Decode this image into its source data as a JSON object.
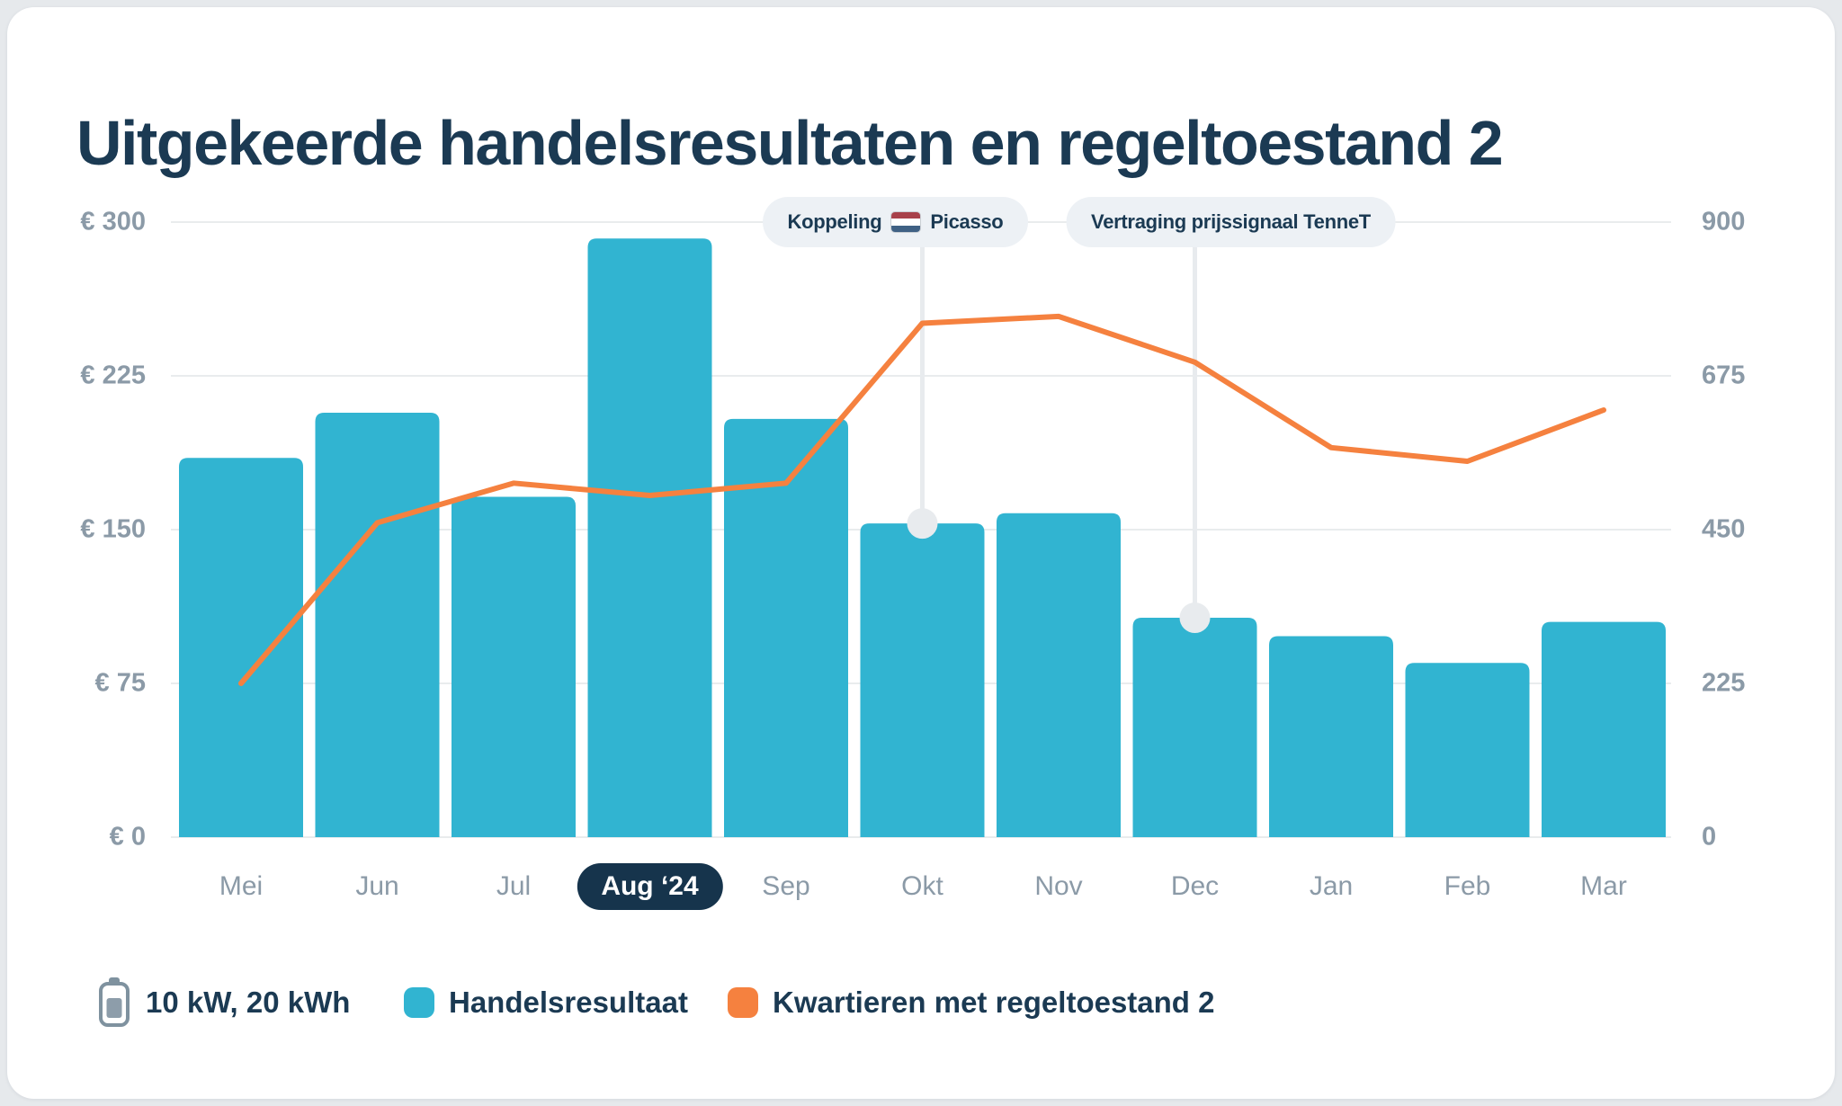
{
  "title": "Uitgekeerde handelsresultaten en regeltoestand 2",
  "annotations": [
    {
      "prefix": "Koppeling",
      "flag": "netherlands-flag",
      "suffix": "Picasso",
      "month": "Okt"
    },
    {
      "text": "Vertraging prijssignaal TenneT",
      "month": "Dec"
    }
  ],
  "legend": {
    "battery": {
      "label": "10 kW, 20 kWh"
    },
    "bars": {
      "label": "Handelsresultaat",
      "color": "#31b4d1"
    },
    "line": {
      "label": "Kwartieren met regeltoestand 2",
      "color": "#f5813f"
    }
  },
  "chart_data": {
    "type": "bar+line",
    "title": "Uitgekeerde handelsresultaten en regeltoestand 2",
    "categories": [
      "Mei",
      "Jun",
      "Jul",
      "Aug ‘24",
      "Sep",
      "Okt",
      "Nov",
      "Dec",
      "Jan",
      "Feb",
      "Mar"
    ],
    "highlighted_category": "Aug ‘24",
    "series": [
      {
        "name": "Handelsresultaat",
        "type": "bar",
        "axis": "left",
        "color": "#31b4d1",
        "values": [
          185,
          207,
          166,
          292,
          204,
          153,
          158,
          107,
          98,
          85,
          105
        ]
      },
      {
        "name": "Kwartieren met regeltoestand 2",
        "type": "line",
        "axis": "right",
        "color": "#f5813f",
        "values": [
          225,
          460,
          518,
          500,
          518,
          752,
          762,
          695,
          570,
          550,
          625
        ]
      }
    ],
    "left_axis": {
      "unit": "€",
      "min": 0,
      "max": 300,
      "ticks": [
        {
          "label": "€ 300",
          "value": 300
        },
        {
          "label": "€ 225",
          "value": 225
        },
        {
          "label": "€ 150",
          "value": 150
        },
        {
          "label": "€ 75",
          "value": 75
        },
        {
          "label": "€ 0",
          "value": 0
        }
      ]
    },
    "right_axis": {
      "min": 0,
      "max": 900,
      "ticks": [
        {
          "label": "900",
          "value": 900
        },
        {
          "label": "675",
          "value": 675
        },
        {
          "label": "450",
          "value": 450
        },
        {
          "label": "225",
          "value": 225
        },
        {
          "label": "0",
          "value": 0
        }
      ]
    },
    "grid": true,
    "legend_position": "bottom",
    "annotations": [
      {
        "label": "Koppeling [NL-flag] Picasso",
        "attached_to_category": "Okt",
        "attached_to_series": "Handelsresultaat"
      },
      {
        "label": "Vertraging prijssignaal TenneT",
        "attached_to_category": "Dec",
        "attached_to_series": "Handelsresultaat"
      }
    ],
    "colors": {
      "bar": "#31b4d1",
      "line": "#f5813f",
      "grid": "#e9eced",
      "connector": "#e8ebee",
      "axis_text": "#8b9aa7",
      "navy_text": "#1b3a53",
      "selected_month_bg": "#16344c"
    }
  }
}
